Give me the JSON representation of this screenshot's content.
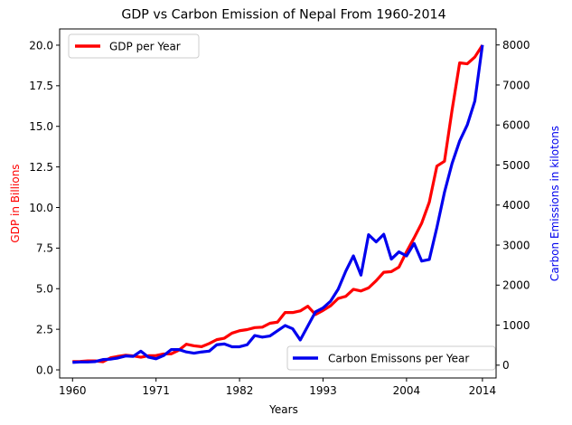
{
  "chart_data": {
    "type": "line",
    "title": "GDP vs Carbon Emission of Nepal From 1960-2014",
    "xlabel": "Years",
    "ylabel_left": "GDP in Billions",
    "ylabel_right": "Carbon Emissions in kilotons",
    "xlim": [
      1958.3,
      2015.8
    ],
    "ylim_left": [
      -0.5,
      21.0
    ],
    "ylim_right": [
      -320,
      8400
    ],
    "xticks": [
      "1960",
      "1971",
      "1982",
      "1993",
      "2004",
      "2014"
    ],
    "xtick_values": [
      1960,
      1971,
      1982,
      1993,
      2004,
      2014
    ],
    "yticks_left": [
      "0.0",
      "2.5",
      "5.0",
      "7.5",
      "10.0",
      "12.5",
      "15.0",
      "17.5",
      "20.0"
    ],
    "ytick_values_left": [
      0,
      2.5,
      5,
      7.5,
      10,
      12.5,
      15,
      17.5,
      20
    ],
    "yticks_right": [
      "0",
      "1000",
      "2000",
      "3000",
      "4000",
      "5000",
      "6000",
      "7000",
      "8000"
    ],
    "ytick_values_right": [
      0,
      1000,
      2000,
      3000,
      4000,
      5000,
      6000,
      7000,
      8000
    ],
    "x": [
      1960,
      1961,
      1962,
      1963,
      1964,
      1965,
      1966,
      1967,
      1968,
      1969,
      1970,
      1971,
      1972,
      1973,
      1974,
      1975,
      1976,
      1977,
      1978,
      1979,
      1980,
      1981,
      1982,
      1983,
      1984,
      1985,
      1986,
      1987,
      1988,
      1989,
      1990,
      1991,
      1992,
      1993,
      1994,
      1995,
      1996,
      1997,
      1998,
      1999,
      2000,
      2001,
      2002,
      2003,
      2004,
      2005,
      2006,
      2007,
      2008,
      2009,
      2010,
      2011,
      2012,
      2013,
      2014
    ],
    "series": [
      {
        "name": "GDP per Year",
        "axis": "left",
        "color": "#ff0000",
        "values": [
          0.51,
          0.52,
          0.55,
          0.55,
          0.5,
          0.74,
          0.83,
          0.9,
          0.86,
          0.78,
          0.87,
          0.88,
          0.98,
          0.99,
          1.21,
          1.58,
          1.48,
          1.43,
          1.62,
          1.86,
          1.95,
          2.26,
          2.41,
          2.48,
          2.6,
          2.63,
          2.87,
          2.94,
          3.53,
          3.53,
          3.63,
          3.92,
          3.41,
          3.66,
          3.95,
          4.4,
          4.53,
          4.96,
          4.86,
          5.05,
          5.49,
          6.01,
          6.05,
          6.33,
          7.27,
          8.13,
          9.04,
          10.33,
          12.55,
          12.85,
          16.0,
          18.91,
          18.85,
          19.27,
          20.0
        ]
      },
      {
        "name": "Carbon Emissons per Year",
        "axis": "right",
        "color": "#0000ee",
        "values": [
          70,
          80,
          80,
          90,
          140,
          150,
          180,
          230,
          220,
          350,
          200,
          160,
          240,
          390,
          390,
          330,
          300,
          330,
          350,
          510,
          530,
          460,
          460,
          510,
          740,
          700,
          730,
          860,
          990,
          910,
          630,
          980,
          1330,
          1430,
          1600,
          1900,
          2350,
          2730,
          2250,
          3260,
          3080,
          3270,
          2650,
          2830,
          2730,
          3040,
          2600,
          2640,
          3440,
          4320,
          5040,
          5600,
          6000,
          6600,
          8000
        ]
      }
    ],
    "legend_left": {
      "label": "GDP per Year",
      "position": "upper-left"
    },
    "legend_right": {
      "label": "Carbon Emissons per Year",
      "position": "lower-right"
    },
    "grid": false
  }
}
